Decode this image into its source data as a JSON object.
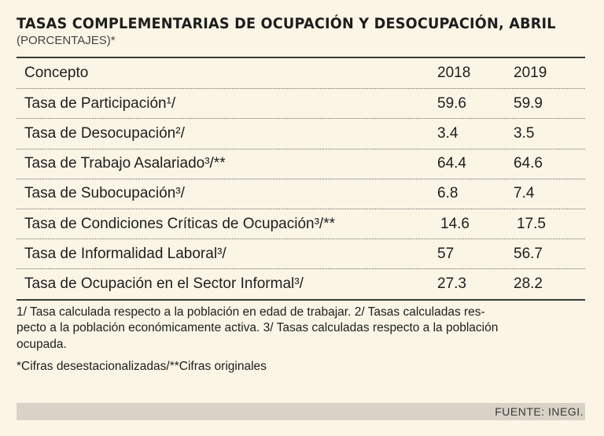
{
  "title": "TASAS COMPLEMENTARIAS DE OCUPACIÓN Y DESOCUPACIÓN, ABRIL",
  "subtitle": "(PORCENTAJES)*",
  "table": {
    "headers": [
      "Concepto",
      "2018",
      "2019"
    ],
    "rows": [
      {
        "concept": "Tasa de Participación¹/",
        "y2018": "59.6",
        "y2019": "59.9"
      },
      {
        "concept": "Tasa de Desocupación²/",
        "y2018": "3.4",
        "y2019": "3.5"
      },
      {
        "concept": "Tasa de Trabajo Asalariado³/**",
        "y2018": "64.4",
        "y2019": "64.6"
      },
      {
        "concept": "Tasa de Subocupación³/",
        "y2018": "6.8",
        "y2019": "7.4"
      },
      {
        "concept": "Tasa de Condiciones Críticas de Ocupación³/**",
        "y2018": "14.6",
        "y2019": "17.5"
      },
      {
        "concept": "Tasa de Informalidad Laboral³/",
        "y2018": "57",
        "y2019": "56.7"
      },
      {
        "concept": "Tasa de Ocupación en el Sector Informal³/",
        "y2018": "27.3",
        "y2019": "28.2"
      }
    ]
  },
  "notes": "1/ Tasa calculada respecto a la población en edad de trabajar. 2/ Tasas calculadas res-pecto a la población económicamente activa. 3/ Tasas calculadas respecto a la población ocupada.",
  "notes_lines": [
    "1/ Tasa calculada respecto a la población en edad de trabajar. 2/ Tasas calculadas res-",
    "pecto a la población económicamente activa. 3/ Tasas calculadas respecto a la población",
    "ocupada."
  ],
  "footnote": "*Cifras desestacionalizadas/**Cifras originales",
  "source": "FUENTE: INEGI."
}
